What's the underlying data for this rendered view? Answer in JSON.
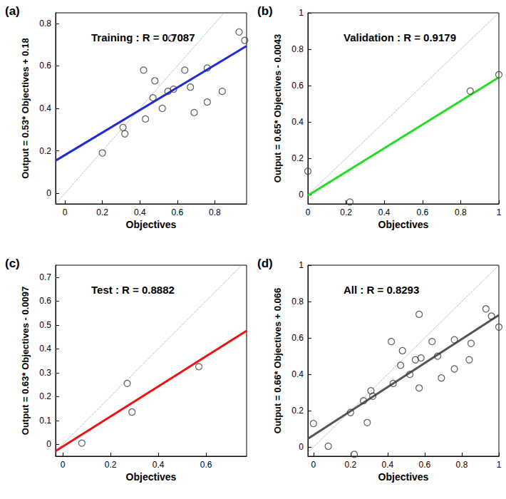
{
  "chart_data": [
    {
      "type": "scatter",
      "panel": "(a)",
      "title": "Training : R = 0.7087",
      "xlabel": "Objectives",
      "ylabel": "Output = 0.53* Objectives + 0.18",
      "x": [
        0.2,
        0.31,
        0.32,
        0.42,
        0.43,
        0.47,
        0.48,
        0.52,
        0.55,
        0.57,
        0.58,
        0.64,
        0.67,
        0.69,
        0.76,
        0.76,
        0.84,
        0.93,
        0.96
      ],
      "values": [
        0.19,
        0.31,
        0.28,
        0.58,
        0.35,
        0.45,
        0.53,
        0.4,
        0.48,
        0.73,
        0.49,
        0.58,
        0.5,
        0.38,
        0.43,
        0.59,
        0.48,
        0.76,
        0.72
      ],
      "fit": {
        "slope": 0.53,
        "intercept": 0.18
      },
      "color": "#1f2bd9",
      "marker": "circle",
      "xlim": [
        -0.05,
        0.97
      ],
      "xticks": [
        0,
        0.2,
        0.4,
        0.6,
        0.8
      ],
      "ylim": [
        -0.05,
        0.85
      ],
      "yticks": [
        0,
        0.2,
        0.4,
        0.6,
        0.8
      ],
      "grid": false
    },
    {
      "type": "scatter",
      "panel": "(b)",
      "title": "Validation : R = 0.9179",
      "xlabel": "Objectives",
      "ylabel": "Output = 0.65* Objectives - 0.0043",
      "x": [
        0,
        0.22,
        0.85,
        1.0
      ],
      "values": [
        0.13,
        -0.04,
        0.57,
        0.66
      ],
      "fit": {
        "slope": 0.65,
        "intercept": -0.0043
      },
      "color": "#22dd22",
      "marker": "circle",
      "xlim": [
        0,
        1
      ],
      "xticks": [
        0,
        0.2,
        0.4,
        0.6,
        0.8,
        1
      ],
      "ylim": [
        -0.05,
        1
      ],
      "yticks": [
        0,
        0.2,
        0.4,
        0.6,
        0.8,
        1
      ],
      "grid": false
    },
    {
      "type": "scatter",
      "panel": "(c)",
      "title": "Test : R = 0.8882",
      "xlabel": "Objectives",
      "ylabel": "Output = 0.63* Objectives - 0.0097",
      "x": [
        0.08,
        0.27,
        0.29,
        0.57
      ],
      "values": [
        0.005,
        0.255,
        0.135,
        0.325
      ],
      "fit": {
        "slope": 0.63,
        "intercept": -0.0097
      },
      "color": "#ee1111",
      "marker": "circle",
      "xlim": [
        -0.03,
        0.77
      ],
      "xticks": [
        0,
        0.2,
        0.4,
        0.6
      ],
      "ylim": [
        -0.05,
        0.75
      ],
      "yticks": [
        0,
        0.1,
        0.2,
        0.3,
        0.4,
        0.5,
        0.6,
        0.7
      ],
      "grid": false
    },
    {
      "type": "scatter",
      "panel": "(d)",
      "title": "All : R = 0.8293",
      "xlabel": "Objectives",
      "ylabel": "Output = 0.66* Objectives + 0.066",
      "x": [
        0,
        0.08,
        0.2,
        0.22,
        0.27,
        0.29,
        0.31,
        0.32,
        0.42,
        0.43,
        0.47,
        0.48,
        0.52,
        0.55,
        0.57,
        0.57,
        0.58,
        0.64,
        0.67,
        0.69,
        0.76,
        0.76,
        0.84,
        0.85,
        0.93,
        0.96,
        1.0
      ],
      "values": [
        0.13,
        0.005,
        0.19,
        -0.04,
        0.255,
        0.135,
        0.31,
        0.28,
        0.58,
        0.35,
        0.45,
        0.53,
        0.4,
        0.48,
        0.73,
        0.325,
        0.49,
        0.58,
        0.5,
        0.38,
        0.43,
        0.59,
        0.48,
        0.57,
        0.76,
        0.72,
        0.66
      ],
      "fit": {
        "slope": 0.66,
        "intercept": 0.066
      },
      "color": "#555555",
      "marker": "circle",
      "xlim": [
        -0.03,
        1
      ],
      "xticks": [
        0,
        0.2,
        0.4,
        0.6,
        0.8,
        1
      ],
      "ylim": [
        -0.05,
        1
      ],
      "yticks": [
        0,
        0.2,
        0.4,
        0.6,
        0.8,
        1
      ],
      "grid": false
    }
  ]
}
